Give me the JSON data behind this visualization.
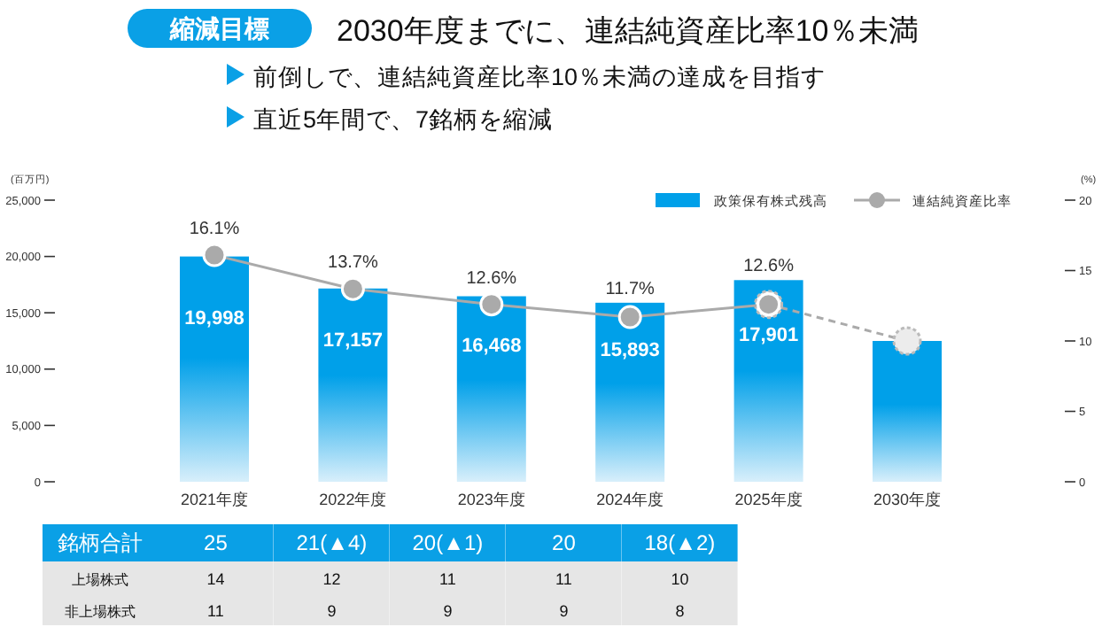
{
  "chart_data": [
    {
      "type": "bar",
      "title": "2030年度までに、連結純資産比率10％未満",
      "annotations": [
        "縮減目標",
        "前倒しで、連結純資産比率10％未満の達成を目指す",
        "直近5年間で、7銘柄を縮減"
      ],
      "categories": [
        "2021年度",
        "2022年度",
        "2023年度",
        "2024年度",
        "2025年度",
        "2030年度"
      ],
      "ylabel": "(百万円)",
      "y2label": "(%)",
      "ylim": [
        0,
        25000
      ],
      "yticks": [
        0,
        {
          "value": 5000,
          "label": "5,000"
        },
        {
          "value": 10000,
          "label": "10,000"
        },
        {
          "value": 15000,
          "label": "15,000"
        },
        {
          "value": 20000,
          "label": "20,000"
        },
        {
          "value": 25000,
          "label": "25,000"
        }
      ],
      "y2lim": [
        0,
        20
      ],
      "y2ticks": [
        0,
        5,
        10,
        15,
        20
      ],
      "grid": false,
      "legend": "top right",
      "series": [
        {
          "name": "政策保有株式残高",
          "type": "bar",
          "color": "#00a0e9",
          "values": [
            19998,
            17157,
            16468,
            15893,
            17901,
            12500
          ],
          "value_labels": [
            "19,998",
            "17,157",
            "16,468",
            "15,893",
            "17,901",
            null
          ]
        },
        {
          "name": "連結純資産比率",
          "type": "line",
          "axis": "y2",
          "color": "#aaaaaa",
          "marker": "circle",
          "line_style": "solid",
          "values": [
            16.1,
            13.7,
            12.6,
            11.7,
            12.6,
            null
          ],
          "value_labels": [
            "16.1%",
            "13.7%",
            "12.6%",
            "11.7%",
            "12.6%",
            null
          ]
        },
        {
          "type": "line",
          "axis": "y2",
          "color": "#aaaaaa",
          "marker": "circle",
          "line_style": "dashed",
          "values": [
            null,
            null,
            null,
            null,
            12.6,
            10
          ]
        }
      ]
    },
    {
      "type": "other",
      "y_categories": [
        "銘柄合計",
        "上場株式",
        "非上場株式"
      ],
      "cell_labels": [
        [
          "25",
          "21(▲4)",
          "20(▲1)",
          "20",
          "18(▲2)"
        ],
        [
          "14",
          "12",
          "11",
          "11",
          "10"
        ],
        [
          "11",
          "9",
          "9",
          "9",
          "8"
        ]
      ]
    }
  ]
}
